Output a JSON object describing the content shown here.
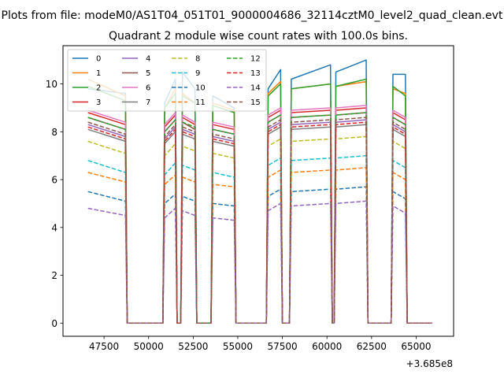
{
  "chart_data": {
    "type": "line",
    "suptitle": "Plots from file: modeM0/AS1T04_051T01_9000004686_32114cztM0_level2_quad_clean.evt",
    "title": "Quadrant 2 module wise count rates with 100.0s bins.",
    "xlabel": "",
    "ylabel": "",
    "x_offset_label": "+3.685e8",
    "x_offset": 368500000,
    "xlim": [
      45200,
      67100
    ],
    "ylim": [
      -0.55,
      11.6
    ],
    "xticks": [
      47500,
      50000,
      52500,
      55000,
      57500,
      60000,
      62500,
      65000
    ],
    "xtick_labels": [
      "47500",
      "50000",
      "52500",
      "55000",
      "57500",
      "60000",
      "62500",
      "65000"
    ],
    "yticks": [
      0,
      2,
      4,
      6,
      8,
      10
    ],
    "ytick_labels": [
      "0",
      "2",
      "4",
      "6",
      "8",
      "10"
    ],
    "bin_seconds": 100,
    "time_bins_relative": [
      46600,
      48700,
      48800,
      50800,
      50900,
      51500,
      51600,
      51800,
      51900,
      52600,
      52700,
      53500,
      53600,
      54800,
      54900,
      56600,
      56700,
      57400,
      57500,
      57900,
      58000,
      60200,
      60300,
      60400,
      60500,
      62200,
      62300,
      63600,
      63700,
      64400,
      64500,
      65900
    ],
    "legend_position": "upper-left",
    "series": [
      {
        "name": "0",
        "style": "solid",
        "color": "#1f77b4",
        "values": [
          9.8,
          9.6,
          0,
          0,
          9.2,
          10.2,
          0,
          0,
          10.5,
          9.8,
          0,
          0,
          9.5,
          9.0,
          0,
          0,
          9.8,
          10.6,
          0,
          0,
          10.2,
          10.8,
          0,
          0,
          10.5,
          11.0,
          0,
          0,
          10.4,
          10.4,
          0,
          0
        ]
      },
      {
        "name": "1",
        "style": "solid",
        "color": "#ff7f0e",
        "values": [
          10.2,
          9.5,
          0,
          0,
          9.0,
          9.8,
          0,
          0,
          9.6,
          9.2,
          0,
          0,
          9.2,
          8.9,
          0,
          0,
          9.6,
          10.1,
          0,
          0,
          9.8,
          10.0,
          0,
          0,
          9.9,
          10.1,
          0,
          0,
          9.8,
          9.6,
          0,
          0
        ]
      },
      {
        "name": "2",
        "style": "solid",
        "color": "#2ca02c",
        "values": [
          9.9,
          9.3,
          0,
          0,
          9.0,
          9.6,
          0,
          0,
          9.5,
          9.2,
          0,
          0,
          9.1,
          8.8,
          0,
          0,
          9.5,
          10.0,
          0,
          0,
          9.8,
          10.0,
          0,
          0,
          9.9,
          10.2,
          0,
          0,
          9.9,
          9.5,
          0,
          0
        ]
      },
      {
        "name": "3",
        "style": "solid",
        "color": "#d62728",
        "values": [
          8.8,
          8.3,
          0,
          0,
          8.2,
          8.7,
          0,
          0,
          8.6,
          8.3,
          0,
          0,
          8.3,
          8.1,
          0,
          0,
          8.6,
          8.9,
          0,
          0,
          8.8,
          8.9,
          0,
          0,
          8.9,
          9.0,
          0,
          0,
          8.8,
          8.5,
          0,
          0
        ]
      },
      {
        "name": "4",
        "style": "solid",
        "color": "#9467bd",
        "values": [
          8.3,
          7.8,
          0,
          0,
          7.7,
          8.2,
          0,
          0,
          8.1,
          7.9,
          0,
          0,
          7.8,
          7.6,
          0,
          0,
          8.1,
          8.4,
          0,
          0,
          8.3,
          8.4,
          0,
          0,
          8.4,
          8.5,
          0,
          0,
          8.3,
          8.0,
          0,
          0
        ]
      },
      {
        "name": "5",
        "style": "solid",
        "color": "#8c564b",
        "values": [
          8.6,
          8.1,
          0,
          0,
          8.0,
          8.5,
          0,
          0,
          8.4,
          8.1,
          0,
          0,
          8.1,
          7.9,
          0,
          0,
          8.4,
          8.7,
          0,
          0,
          8.6,
          8.7,
          0,
          0,
          8.7,
          8.8,
          0,
          0,
          8.6,
          8.3,
          0,
          0
        ]
      },
      {
        "name": "6",
        "style": "solid",
        "color": "#e377c2",
        "values": [
          8.9,
          8.4,
          0,
          0,
          8.3,
          8.8,
          0,
          0,
          8.7,
          8.4,
          0,
          0,
          8.4,
          8.2,
          0,
          0,
          8.7,
          9.0,
          0,
          0,
          8.9,
          9.0,
          0,
          0,
          9.0,
          9.1,
          0,
          0,
          8.9,
          8.6,
          0,
          0
        ]
      },
      {
        "name": "7",
        "style": "solid",
        "color": "#7f7f7f",
        "values": [
          8.1,
          7.6,
          0,
          0,
          7.5,
          8.0,
          0,
          0,
          7.9,
          7.7,
          0,
          0,
          7.6,
          7.4,
          0,
          0,
          7.9,
          8.2,
          0,
          0,
          8.1,
          8.2,
          0,
          0,
          8.2,
          8.3,
          0,
          0,
          8.1,
          7.8,
          0,
          0
        ]
      },
      {
        "name": "8",
        "style": "dashed",
        "color": "#bcbd22",
        "values": [
          7.6,
          7.1,
          0,
          0,
          7.0,
          7.5,
          0,
          0,
          7.4,
          7.2,
          0,
          0,
          7.1,
          6.9,
          0,
          0,
          7.4,
          7.7,
          0,
          0,
          7.6,
          7.7,
          0,
          0,
          7.7,
          7.8,
          0,
          0,
          7.6,
          7.3,
          0,
          0
        ]
      },
      {
        "name": "9",
        "style": "dashed",
        "color": "#17becf",
        "values": [
          6.8,
          6.3,
          0,
          0,
          6.2,
          6.7,
          0,
          0,
          6.6,
          6.4,
          0,
          0,
          6.3,
          6.1,
          0,
          0,
          6.6,
          6.9,
          0,
          0,
          6.8,
          6.9,
          0,
          0,
          6.9,
          7.0,
          0,
          0,
          6.8,
          6.5,
          0,
          0
        ]
      },
      {
        "name": "10",
        "style": "dashed",
        "color": "#1f77b4",
        "values": [
          5.5,
          5.1,
          0,
          0,
          5.0,
          5.4,
          0,
          0,
          5.3,
          5.1,
          0,
          0,
          5.0,
          4.9,
          0,
          0,
          5.3,
          5.6,
          0,
          0,
          5.5,
          5.6,
          0,
          0,
          5.6,
          5.7,
          0,
          0,
          5.5,
          5.2,
          0,
          0
        ]
      },
      {
        "name": "11",
        "style": "dashed",
        "color": "#ff7f0e",
        "values": [
          6.3,
          5.9,
          0,
          0,
          5.8,
          6.2,
          0,
          0,
          6.1,
          5.9,
          0,
          0,
          5.8,
          5.7,
          0,
          0,
          6.1,
          6.4,
          0,
          0,
          6.3,
          6.4,
          0,
          0,
          6.4,
          6.5,
          0,
          0,
          6.3,
          6.0,
          0,
          0
        ]
      },
      {
        "name": "12",
        "style": "dashed",
        "color": "#2ca02c",
        "values": [
          8.6,
          8.1,
          0,
          0,
          8.0,
          8.5,
          0,
          0,
          8.4,
          8.2,
          0,
          0,
          8.1,
          7.9,
          0,
          0,
          8.4,
          8.7,
          0,
          0,
          8.6,
          8.7,
          0,
          0,
          8.7,
          8.8,
          0,
          0,
          8.6,
          8.3,
          0,
          0
        ]
      },
      {
        "name": "13",
        "style": "dashed",
        "color": "#d62728",
        "values": [
          8.2,
          7.7,
          0,
          0,
          7.6,
          8.1,
          0,
          0,
          8.0,
          7.8,
          0,
          0,
          7.7,
          7.5,
          0,
          0,
          8.0,
          8.3,
          0,
          0,
          8.2,
          8.3,
          0,
          0,
          8.3,
          8.4,
          0,
          0,
          8.2,
          7.9,
          0,
          0
        ]
      },
      {
        "name": "14",
        "style": "dashed",
        "color": "#9467bd",
        "values": [
          4.8,
          4.5,
          0,
          0,
          4.4,
          4.8,
          0,
          0,
          4.7,
          4.5,
          0,
          0,
          4.4,
          4.3,
          0,
          0,
          4.7,
          5.0,
          0,
          0,
          4.9,
          5.0,
          0,
          0,
          5.0,
          5.1,
          0,
          0,
          4.9,
          4.6,
          0,
          0
        ]
      },
      {
        "name": "15",
        "style": "dashed",
        "color": "#8c564b",
        "values": [
          8.4,
          7.9,
          0,
          0,
          7.8,
          8.3,
          0,
          0,
          8.2,
          8.0,
          0,
          0,
          7.9,
          7.7,
          0,
          0,
          8.2,
          8.5,
          0,
          0,
          8.4,
          8.5,
          0,
          0,
          8.5,
          8.6,
          0,
          0,
          8.4,
          8.1,
          0,
          0
        ]
      }
    ]
  }
}
